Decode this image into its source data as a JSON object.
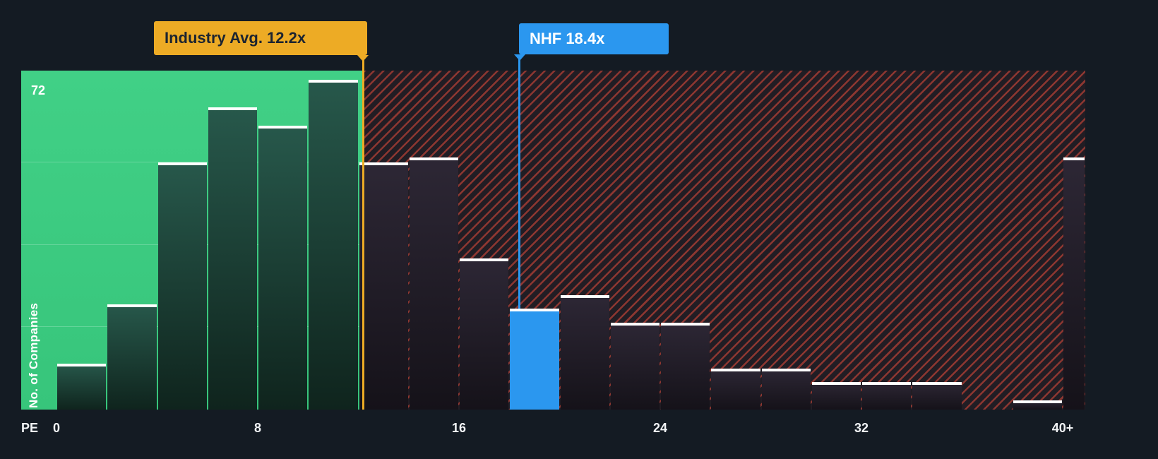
{
  "colors": {
    "background": "#141b23",
    "below_average_region": "#3ecb80",
    "above_average_stripe": "#e44c3c",
    "bar_cap": "#ffffff",
    "highlight_bar": "#2b97ef",
    "industry_marker": "#edab25",
    "company_marker": "#2b97ef"
  },
  "annotations": {
    "industry": {
      "label": "Industry Avg. 12.2x",
      "value_x": 12.2
    },
    "company": {
      "label": "NHF 18.4x",
      "value_x": 18.4
    }
  },
  "axis": {
    "y_max_label": "72",
    "ylabel": "No. of Companies",
    "x_prefix": "PE",
    "x_ticks": [
      {
        "label": "0",
        "pe": 0
      },
      {
        "label": "8",
        "pe": 8
      },
      {
        "label": "16",
        "pe": 16
      },
      {
        "label": "24",
        "pe": 24
      },
      {
        "label": "32",
        "pe": 32
      },
      {
        "label": "40+",
        "pe": 40
      }
    ]
  },
  "chart_data": {
    "type": "bar",
    "title": "",
    "xlabel": "PE",
    "ylabel": "No. of Companies",
    "ylim": [
      0,
      74
    ],
    "gridlines": [
      18,
      36,
      54
    ],
    "grid": "subtle horizontal lines in below-average region only",
    "legend": "none",
    "bucket_width_pe": 2,
    "categories": [
      "0-2",
      "2-4",
      "4-6",
      "6-8",
      "8-10",
      "10-12",
      "12-14",
      "14-16",
      "16-18",
      "18-20",
      "20-22",
      "22-24",
      "24-26",
      "26-28",
      "28-30",
      "30-32",
      "32-34",
      "34-36",
      "36-38",
      "38-40",
      "40+"
    ],
    "values": [
      10,
      23,
      54,
      66,
      62,
      72,
      54,
      55,
      33,
      22,
      25,
      19,
      19,
      9,
      9,
      6,
      6,
      6,
      0,
      2,
      55
    ],
    "highlight_index": 9,
    "highlight_category": "18-20",
    "markers": [
      {
        "label": "Industry Avg. 12.2x",
        "x": 12.2,
        "color": "#edab25"
      },
      {
        "label": "NHF 18.4x",
        "x": 18.4,
        "color": "#2b97ef"
      }
    ],
    "regions": [
      {
        "name": "below industry average",
        "x_range": [
          0,
          12.2
        ],
        "color": "#3ecb80"
      },
      {
        "name": "above industry average",
        "x_range": [
          12.2,
          42
        ],
        "style": "red diagonal hatch"
      }
    ]
  }
}
